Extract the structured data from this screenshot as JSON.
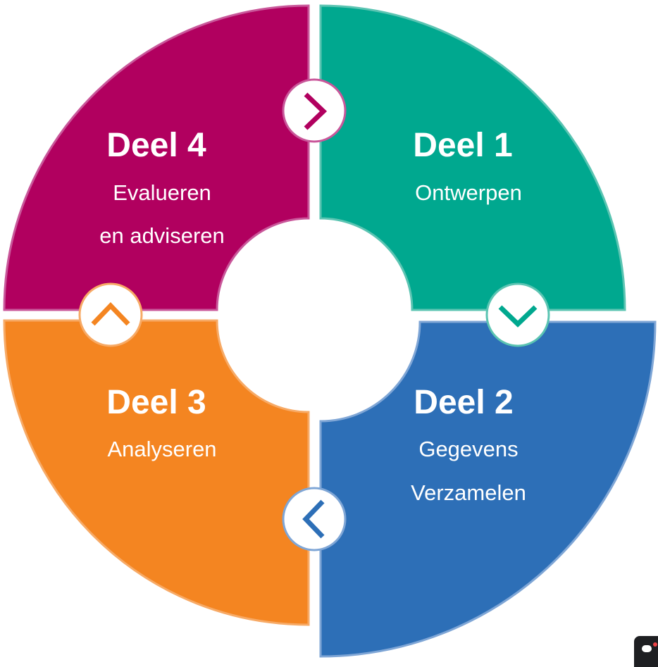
{
  "segments": [
    {
      "id": "deel1",
      "title": "Deel 1",
      "lines": [
        "Ontwerpen"
      ],
      "fill": "#00a88f",
      "stroke": "#5bc4b2",
      "arrow_color": "#00a88f",
      "arrow_icon": "chevron-down-icon"
    },
    {
      "id": "deel2",
      "title": "Deel 2",
      "lines": [
        "Gegevens",
        "Verzamelen"
      ],
      "fill": "#2d6fb7",
      "stroke": "#7fa6d6",
      "arrow_color": "#2d6fb7",
      "arrow_icon": "chevron-left-icon"
    },
    {
      "id": "deel3",
      "title": "Deel 3",
      "lines": [
        "Analyseren"
      ],
      "fill": "#f48521",
      "stroke": "#f7aa66",
      "arrow_color": "#f48521",
      "arrow_icon": "chevron-up-icon"
    },
    {
      "id": "deel4",
      "title": "Deel 4",
      "lines": [
        "Evalueren",
        "en adviseren"
      ],
      "fill": "#b1005f",
      "stroke": "#c9579a",
      "arrow_color": "#b1005f",
      "arrow_icon": "chevron-right-icon"
    }
  ],
  "widget": {
    "icon": "chat-icon"
  }
}
